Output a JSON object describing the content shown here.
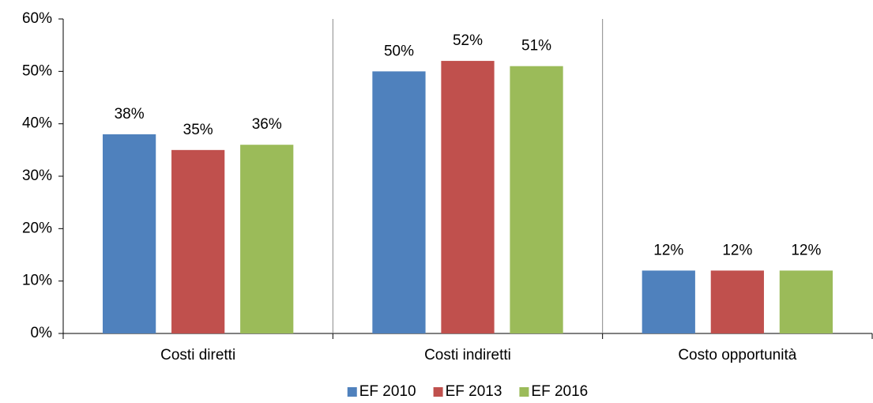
{
  "chart_data": {
    "type": "bar",
    "categories": [
      "Costi diretti",
      "Costi indiretti",
      "Costo opportunità"
    ],
    "series": [
      {
        "name": "EF 2010",
        "color": "#4f81bd",
        "values": [
          38,
          50,
          12
        ],
        "value_labels": [
          "38%",
          "50%",
          "12%"
        ]
      },
      {
        "name": "EF 2013",
        "color": "#c0504d",
        "values": [
          35,
          52,
          12
        ],
        "value_labels": [
          "35%",
          "52%",
          "12%"
        ]
      },
      {
        "name": "EF 2016",
        "color": "#9bbb59",
        "values": [
          36,
          51,
          12
        ],
        "value_labels": [
          "36%",
          "51%",
          "12%"
        ]
      }
    ],
    "ylim": [
      0,
      60
    ],
    "yticks": [
      {
        "value": 0,
        "label": "0%"
      },
      {
        "value": 10,
        "label": "10%"
      },
      {
        "value": 20,
        "label": "20%"
      },
      {
        "value": 30,
        "label": "30%"
      },
      {
        "value": 40,
        "label": "40%"
      },
      {
        "value": 50,
        "label": "50%"
      },
      {
        "value": 60,
        "label": "60%"
      }
    ],
    "grid": false,
    "legend": "bottom"
  }
}
